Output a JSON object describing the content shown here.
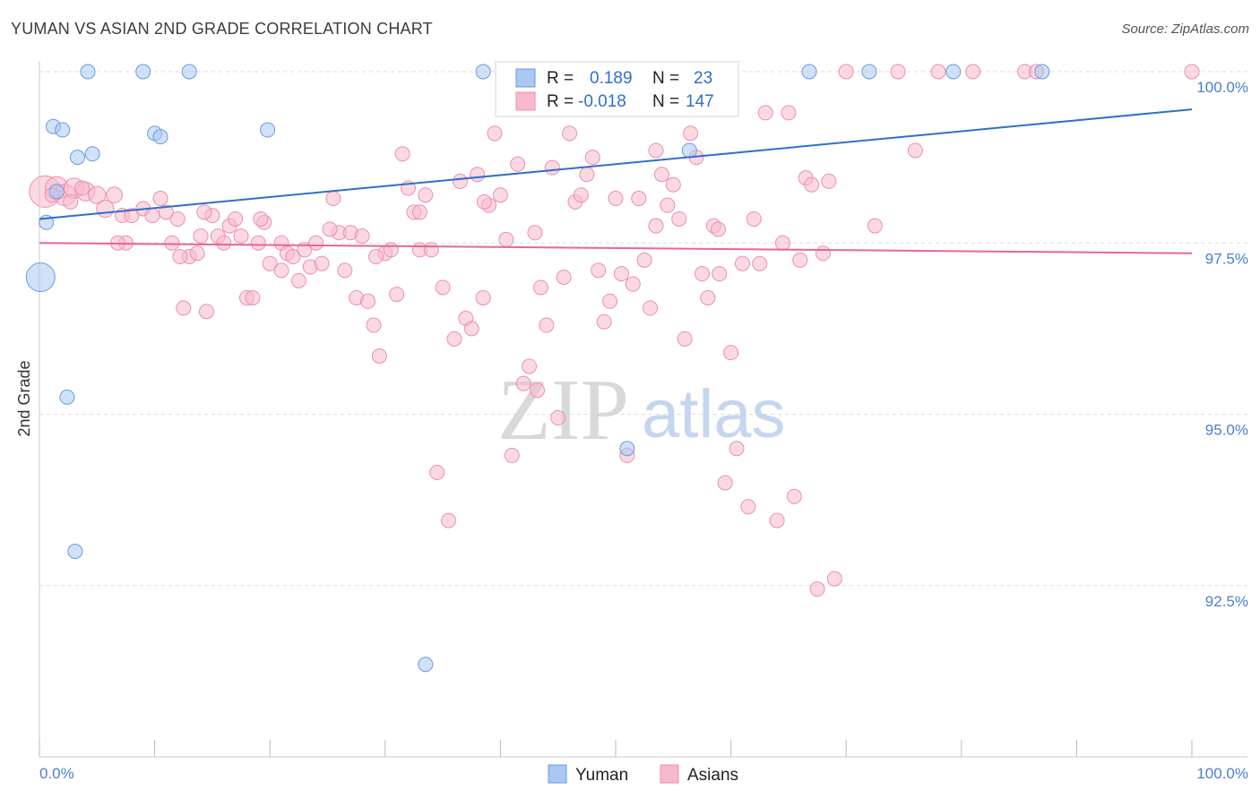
{
  "title": "YUMAN VS ASIAN 2ND GRADE CORRELATION CHART",
  "source": "Source: ZipAtlas.com",
  "watermark": {
    "zip": "ZIP",
    "atlas": "atlas"
  },
  "colors": {
    "yuman_fill": "#a9c8f2",
    "yuman_stroke": "#6a9be0",
    "yuman_line": "#2f6fcc",
    "asians_fill": "#f7b9cc",
    "asians_stroke": "#ec8fad",
    "asians_line": "#e86692",
    "tick_text": "#4a7fd0",
    "grid": "#dddddd"
  },
  "legend": {
    "yuman": {
      "r_label": "R =",
      "r_value": "0.189",
      "n_label": "N =",
      "n_value": "23"
    },
    "asians": {
      "r_label": "R =",
      "r_value": "-0.018",
      "n_label": "N =",
      "n_value": "147"
    }
  },
  "bottom_legend": {
    "yuman": "Yuman",
    "asians": "Asians"
  },
  "chart_data": {
    "type": "scatter",
    "title": "YUMAN VS ASIAN 2ND GRADE CORRELATION CHART",
    "xlabel": "",
    "ylabel": "2nd Grade",
    "xlim": [
      0,
      100
    ],
    "ylim": [
      90.0,
      100.5
    ],
    "x_tick_labels": [
      "0.0%",
      "100.0%"
    ],
    "y_ticks": [
      92.5,
      95.0,
      97.5,
      100.0
    ],
    "y_tick_labels": [
      "92.5%",
      "95.0%",
      "97.5%",
      "100.0%"
    ],
    "grid": true,
    "legend_position": "top-center",
    "series": [
      {
        "name": "Yuman",
        "trend": [
          [
            0,
            97.85
          ],
          [
            100,
            99.45
          ]
        ],
        "points": [
          [
            0.1,
            97.0,
            2.0
          ],
          [
            0.6,
            97.8,
            1
          ],
          [
            1.2,
            99.2,
            1
          ],
          [
            2.0,
            99.15,
            1
          ],
          [
            3.3,
            98.75,
            1
          ],
          [
            4.6,
            98.8,
            1
          ],
          [
            4.2,
            100.0,
            1
          ],
          [
            9.0,
            100.0,
            1
          ],
          [
            13.0,
            100.0,
            1
          ],
          [
            10.0,
            99.1,
            1
          ],
          [
            10.5,
            99.05,
            1
          ],
          [
            19.8,
            99.15,
            1
          ],
          [
            38.5,
            100.0,
            1
          ],
          [
            56.4,
            98.85,
            1
          ],
          [
            66.8,
            100.0,
            1
          ],
          [
            72.0,
            100.0,
            1
          ],
          [
            79.3,
            100.0,
            1
          ],
          [
            87.0,
            100.0,
            1
          ],
          [
            2.4,
            95.25,
            1
          ],
          [
            3.1,
            93.0,
            1
          ],
          [
            33.5,
            91.35,
            1
          ],
          [
            51.0,
            94.5,
            1
          ],
          [
            1.5,
            98.25,
            1
          ]
        ]
      },
      {
        "name": "Asians",
        "trend": [
          [
            0,
            97.5
          ],
          [
            100,
            97.35
          ]
        ],
        "points": [
          [
            0.5,
            98.25,
            2.2
          ],
          [
            1.5,
            98.3,
            1.6
          ],
          [
            2.2,
            98.2,
            1.5
          ],
          [
            3.0,
            98.3,
            1.4
          ],
          [
            4.0,
            98.25,
            1.3
          ],
          [
            5.0,
            98.2,
            1.2
          ],
          [
            5.7,
            98.0,
            1.2
          ],
          [
            6.5,
            98.2,
            1.1
          ],
          [
            7.2,
            97.9,
            1
          ],
          [
            7.5,
            97.5,
            1
          ],
          [
            8.0,
            97.9,
            1
          ],
          [
            9.0,
            98.0,
            1
          ],
          [
            9.8,
            97.9,
            1
          ],
          [
            10.5,
            98.15,
            1
          ],
          [
            11.0,
            97.95,
            1
          ],
          [
            11.5,
            97.5,
            1
          ],
          [
            12.0,
            97.85,
            1
          ],
          [
            12.5,
            96.55,
            1
          ],
          [
            13.0,
            97.3,
            1
          ],
          [
            13.7,
            97.35,
            1
          ],
          [
            14.0,
            97.6,
            1
          ],
          [
            14.5,
            96.5,
            1
          ],
          [
            15.0,
            97.9,
            1
          ],
          [
            15.5,
            97.6,
            1
          ],
          [
            16.0,
            97.5,
            1
          ],
          [
            16.5,
            97.75,
            1
          ],
          [
            17.0,
            97.85,
            1
          ],
          [
            17.5,
            97.6,
            1
          ],
          [
            18.0,
            96.7,
            1
          ],
          [
            18.5,
            96.7,
            1
          ],
          [
            19.0,
            97.5,
            1
          ],
          [
            19.5,
            97.8,
            1
          ],
          [
            20.0,
            97.2,
            1
          ],
          [
            21.0,
            97.5,
            1
          ],
          [
            21.5,
            97.35,
            1
          ],
          [
            22.0,
            97.3,
            1
          ],
          [
            22.5,
            96.95,
            1
          ],
          [
            23.0,
            97.4,
            1
          ],
          [
            23.5,
            97.15,
            1
          ],
          [
            24.0,
            97.5,
            1
          ],
          [
            24.5,
            97.2,
            1
          ],
          [
            25.5,
            98.15,
            1
          ],
          [
            26.0,
            97.65,
            1
          ],
          [
            26.5,
            97.1,
            1
          ],
          [
            27.0,
            97.65,
            1
          ],
          [
            27.5,
            96.7,
            1
          ],
          [
            28.0,
            97.6,
            1
          ],
          [
            28.5,
            96.65,
            1
          ],
          [
            29.0,
            96.3,
            1
          ],
          [
            29.5,
            95.85,
            1
          ],
          [
            30.0,
            97.35,
            1
          ],
          [
            30.5,
            97.4,
            1
          ],
          [
            31.0,
            96.75,
            1
          ],
          [
            31.5,
            98.8,
            1
          ],
          [
            32.0,
            98.3,
            1
          ],
          [
            32.5,
            97.95,
            1
          ],
          [
            33.0,
            97.4,
            1
          ],
          [
            33.5,
            98.2,
            1
          ],
          [
            34.0,
            97.4,
            1
          ],
          [
            34.5,
            94.15,
            1
          ],
          [
            35.0,
            96.85,
            1
          ],
          [
            35.5,
            93.45,
            1
          ],
          [
            36.0,
            96.1,
            1
          ],
          [
            36.5,
            98.4,
            1
          ],
          [
            37.0,
            96.4,
            1
          ],
          [
            37.5,
            96.25,
            1
          ],
          [
            38.0,
            98.5,
            1
          ],
          [
            38.5,
            96.7,
            1
          ],
          [
            39.0,
            98.05,
            1
          ],
          [
            39.5,
            99.1,
            1
          ],
          [
            40.0,
            98.2,
            1
          ],
          [
            40.5,
            97.55,
            1
          ],
          [
            41.0,
            94.4,
            1
          ],
          [
            41.5,
            98.65,
            1
          ],
          [
            42.0,
            95.45,
            1
          ],
          [
            42.5,
            95.7,
            1
          ],
          [
            43.0,
            97.65,
            1
          ],
          [
            43.5,
            96.85,
            1
          ],
          [
            44.0,
            96.3,
            1
          ],
          [
            44.5,
            98.6,
            1
          ],
          [
            45.0,
            94.95,
            1
          ],
          [
            45.5,
            97.0,
            1
          ],
          [
            46.0,
            99.1,
            1
          ],
          [
            46.5,
            98.1,
            1
          ],
          [
            47.0,
            98.2,
            1
          ],
          [
            47.5,
            98.5,
            1
          ],
          [
            48.0,
            98.75,
            1
          ],
          [
            48.5,
            97.1,
            1
          ],
          [
            49.0,
            96.35,
            1
          ],
          [
            49.5,
            96.65,
            1
          ],
          [
            50.0,
            98.15,
            1
          ],
          [
            50.5,
            97.05,
            1
          ],
          [
            51.0,
            94.4,
            1
          ],
          [
            51.5,
            96.9,
            1
          ],
          [
            52.0,
            98.15,
            1
          ],
          [
            52.5,
            97.25,
            1
          ],
          [
            53.0,
            96.55,
            1
          ],
          [
            53.5,
            98.85,
            1
          ],
          [
            54.0,
            98.5,
            1
          ],
          [
            54.5,
            98.05,
            1
          ],
          [
            55.0,
            98.35,
            1
          ],
          [
            55.5,
            97.85,
            1
          ],
          [
            56.0,
            96.1,
            1
          ],
          [
            56.5,
            99.1,
            1
          ],
          [
            57.0,
            98.75,
            1
          ],
          [
            57.5,
            97.05,
            1
          ],
          [
            58.0,
            96.7,
            1
          ],
          [
            58.5,
            97.75,
            1
          ],
          [
            59.0,
            97.05,
            1
          ],
          [
            59.5,
            94.0,
            1
          ],
          [
            60.0,
            95.9,
            1
          ],
          [
            60.5,
            94.5,
            1
          ],
          [
            61.0,
            97.2,
            1
          ],
          [
            61.5,
            93.65,
            1
          ],
          [
            62.0,
            97.85,
            1
          ],
          [
            62.5,
            97.2,
            1
          ],
          [
            63.0,
            99.4,
            1
          ],
          [
            64.0,
            93.45,
            1
          ],
          [
            64.5,
            97.5,
            1
          ],
          [
            65.0,
            99.4,
            1
          ],
          [
            65.5,
            93.8,
            1
          ],
          [
            66.0,
            97.25,
            1
          ],
          [
            66.5,
            98.45,
            1
          ],
          [
            67.0,
            98.35,
            1
          ],
          [
            67.5,
            92.45,
            1
          ],
          [
            68.0,
            97.35,
            1
          ],
          [
            68.5,
            98.4,
            1
          ],
          [
            69.0,
            92.6,
            1
          ],
          [
            70.0,
            100.0,
            1
          ],
          [
            72.5,
            97.75,
            1
          ],
          [
            74.5,
            100.0,
            1
          ],
          [
            76.0,
            98.85,
            1
          ],
          [
            78.0,
            100.0,
            1
          ],
          [
            81.0,
            100.0,
            1
          ],
          [
            85.5,
            100.0,
            1
          ],
          [
            86.5,
            100.0,
            1
          ],
          [
            100.0,
            100.0,
            1
          ],
          [
            43.2,
            95.35,
            1
          ],
          [
            2.7,
            98.1,
            1
          ],
          [
            6.8,
            97.5,
            1
          ],
          [
            3.7,
            98.3,
            1
          ],
          [
            1.1,
            98.2,
            1
          ],
          [
            14.3,
            97.95,
            1
          ],
          [
            19.2,
            97.85,
            1
          ],
          [
            12.2,
            97.3,
            1
          ],
          [
            21.0,
            97.1,
            1
          ],
          [
            25.2,
            97.7,
            1
          ],
          [
            29.2,
            97.3,
            1
          ],
          [
            33.0,
            97.95,
            1
          ],
          [
            38.6,
            98.1,
            1
          ],
          [
            53.5,
            97.75,
            1
          ],
          [
            58.9,
            97.7,
            1
          ]
        ]
      }
    ]
  }
}
